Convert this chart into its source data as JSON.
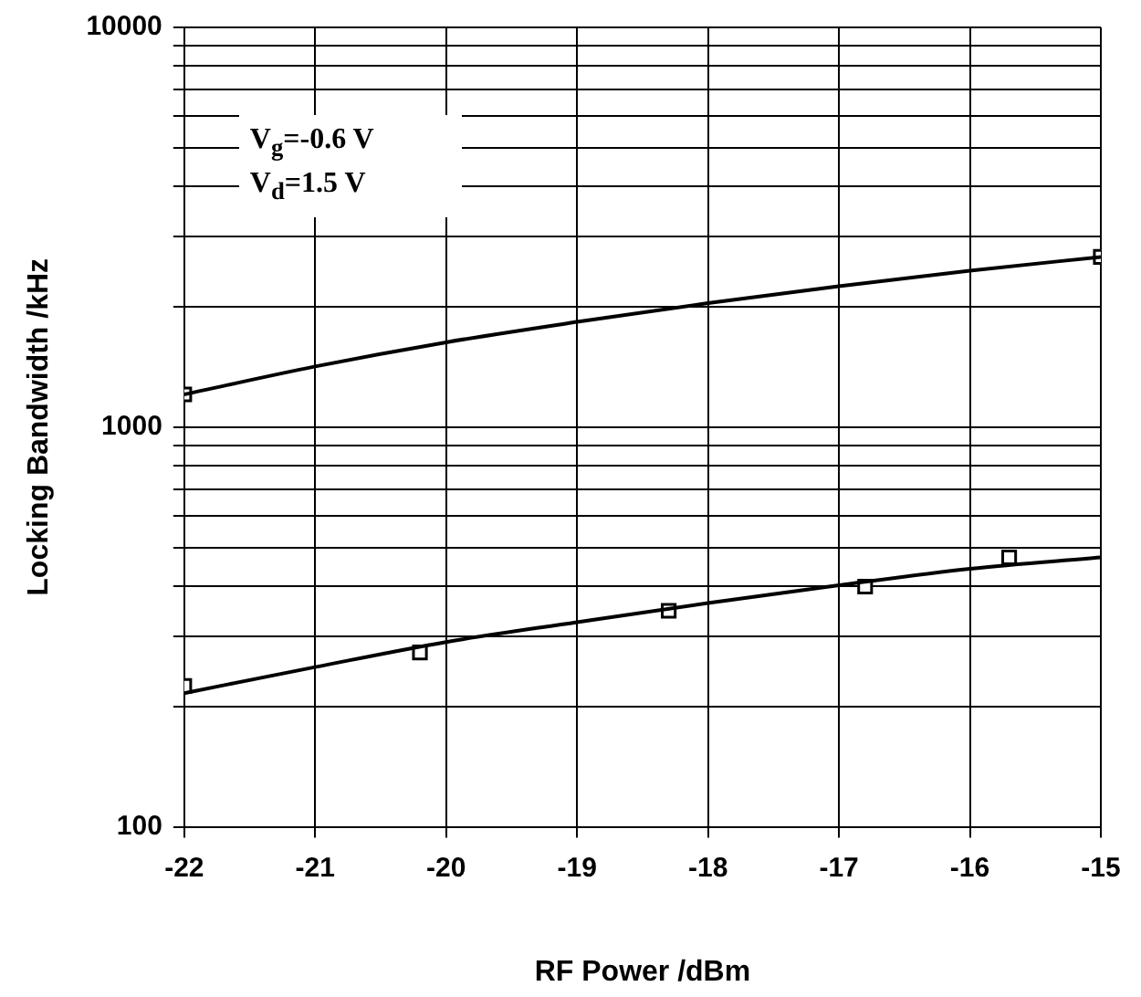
{
  "chart_data": {
    "type": "line",
    "xlabel": "RF Power /dBm",
    "ylabel": "Locking Bandwidth /kHz",
    "xlim": [
      -22,
      -15
    ],
    "xticks": [
      -22,
      -21,
      -20,
      -19,
      -18,
      -17,
      -16,
      -15
    ],
    "ylim": [
      100,
      10000
    ],
    "log": "y",
    "yticks": [
      100,
      {
        "value": 200,
        "label": null
      },
      {
        "value": 300,
        "label": null
      },
      {
        "value": 400,
        "label": null
      },
      {
        "value": 500,
        "label": null
      },
      {
        "value": 600,
        "label": null
      },
      {
        "value": 700,
        "label": null
      },
      {
        "value": 800,
        "label": null
      },
      {
        "value": 900,
        "label": null
      },
      1000,
      {
        "value": 2000,
        "label": null
      },
      {
        "value": 3000,
        "label": null
      },
      {
        "value": 4000,
        "label": null
      },
      {
        "value": 5000,
        "label": null
      },
      {
        "value": 6000,
        "label": null
      },
      {
        "value": 7000,
        "label": null
      },
      {
        "value": 8000,
        "label": null
      },
      {
        "value": 9000,
        "label": null
      },
      10000
    ],
    "grid": true,
    "legend": false,
    "annotations": [
      "V$_{g}$=-0.6 V",
      "V$_{d}$=1.5 V"
    ],
    "series": [
      {
        "marker": "none",
        "color": "#000000",
        "x": [
          -22,
          -21,
          -20,
          -19,
          -18,
          -17,
          -16,
          -15
        ],
        "values": [
          1207,
          1418,
          1630,
          1833,
          2042,
          2252,
          2462,
          2665
        ]
      },
      {
        "type": "scatter",
        "marker": "square",
        "color": "#000000",
        "x": [
          -22,
          -15
        ],
        "values": [
          1207,
          2665
        ]
      },
      {
        "marker": "none",
        "color": "#000000",
        "x": [
          -22,
          -21,
          -20,
          -19,
          -18,
          -17,
          -16,
          -15
        ],
        "values": [
          216,
          251,
          290,
          325,
          363,
          402,
          442,
          472
        ]
      },
      {
        "type": "scatter",
        "marker": "square",
        "color": "#000000",
        "x": [
          -22,
          -20.2,
          -18.3,
          -16.8,
          -15.7
        ],
        "values": [
          225,
          273,
          347,
          399,
          472
        ]
      }
    ]
  }
}
